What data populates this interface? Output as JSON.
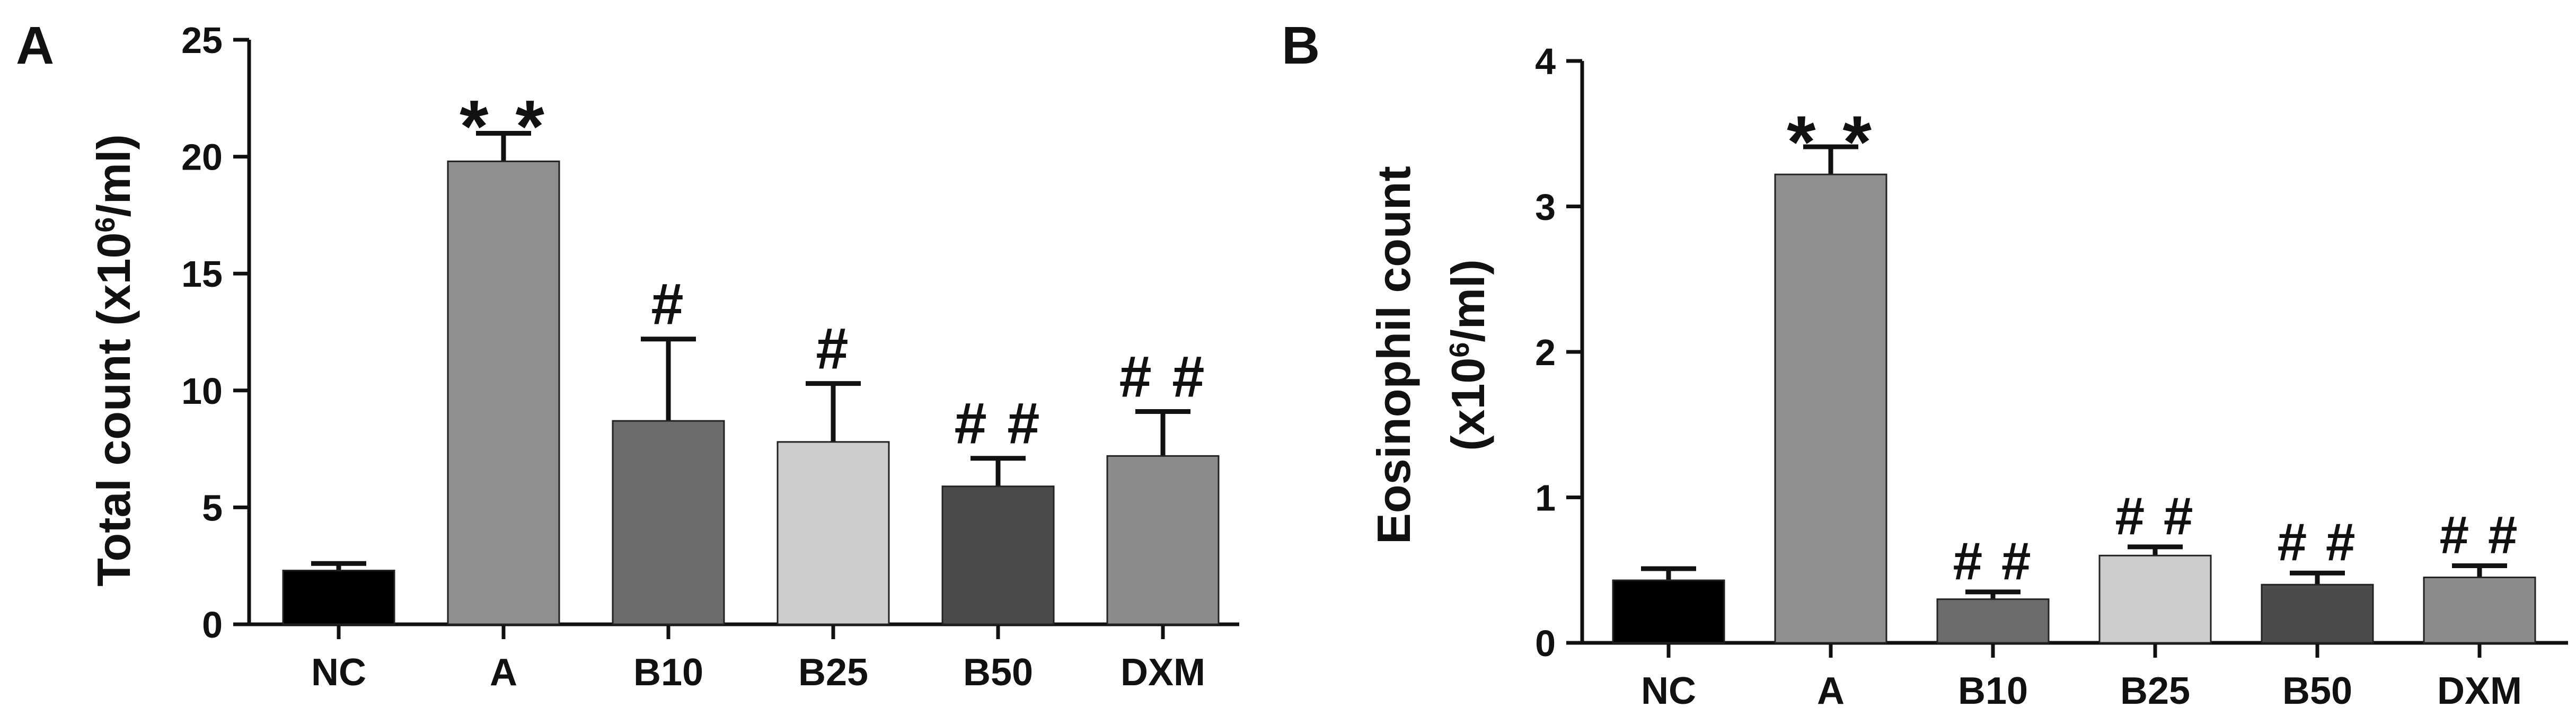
{
  "chart_data": [
    {
      "type": "bar",
      "panel_label": "A",
      "categories": [
        "NC",
        "A",
        "B10",
        "B25",
        "B50",
        "DXM"
      ],
      "values": [
        2.3,
        19.8,
        8.7,
        7.8,
        5.9,
        7.2
      ],
      "errors": [
        0.3,
        1.2,
        3.5,
        2.5,
        1.2,
        1.9
      ],
      "significance": [
        "",
        "* *",
        "#",
        "#",
        "# #",
        "# #"
      ],
      "colors": [
        "#000000",
        "#8f8f8f",
        "#6b6b6b",
        "#cccccc",
        "#4b4b4b",
        "#8c8c8c"
      ],
      "ylabel_main": "Total count (x10",
      "ylabel_sup": "6",
      "ylabel_tail": "/ml)",
      "ylim": [
        0,
        25
      ],
      "yticks": [
        0,
        5,
        10,
        15,
        20,
        25
      ],
      "grid": false
    },
    {
      "type": "bar",
      "panel_label": "B",
      "categories": [
        "NC",
        "A",
        "B10",
        "B25",
        "B50",
        "DXM"
      ],
      "values": [
        0.43,
        3.22,
        0.3,
        0.6,
        0.4,
        0.45
      ],
      "errors": [
        0.08,
        0.19,
        0.05,
        0.06,
        0.08,
        0.08
      ],
      "significance": [
        "",
        "* *",
        "# #",
        "# #",
        "# #",
        "# #"
      ],
      "colors": [
        "#000000",
        "#8f8f8f",
        "#6b6b6b",
        "#cccccc",
        "#4b4b4b",
        "#8c8c8c"
      ],
      "ylabel_line1": "Eosinophil count",
      "ylabel_main": "(x10",
      "ylabel_sup": "6",
      "ylabel_tail": "/ml)",
      "ylim": [
        0,
        4
      ],
      "yticks": [
        0,
        1,
        2,
        3,
        4
      ],
      "grid": false
    }
  ]
}
